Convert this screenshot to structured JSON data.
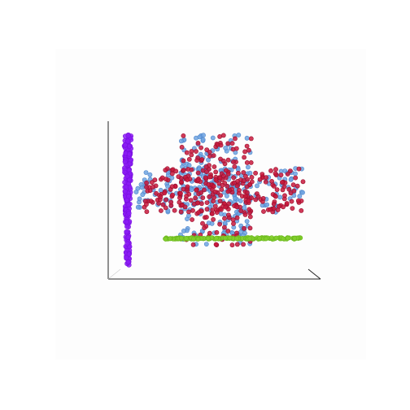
{
  "chart_data": {
    "type": "scatter",
    "projection": "3d",
    "title": "",
    "xlabel": "",
    "ylabel": "",
    "zlabel": "",
    "grid": false,
    "legend": "none",
    "series": [
      {
        "color": "#8b1cf5",
        "edge": "#7a10e0",
        "shape": "vertical-band",
        "x_range": [
          -0.05,
          0.05
        ],
        "y_range": [
          -1.0,
          1.0
        ],
        "count": 200
      },
      {
        "color": "#6fa3e0",
        "edge": "#4f86cc",
        "shape": "plus",
        "bar_x": [
          0.0,
          1.0
        ],
        "bar_y": [
          0.3,
          0.7
        ],
        "stem_x": [
          0.27,
          0.69
        ],
        "stem_y": [
          0.0,
          1.0
        ],
        "count": 330
      },
      {
        "color": "#c8183c",
        "edge": "#9a0f2c",
        "shape": "plus",
        "bar_x": [
          0.05,
          1.0
        ],
        "bar_y": [
          0.3,
          0.7
        ],
        "stem_x": [
          0.27,
          0.69
        ],
        "stem_y": [
          0.0,
          1.0
        ],
        "count": 360
      },
      {
        "color": "#82cf2e",
        "edge": "#6bb81c",
        "shape": "horizontal-band",
        "x_range": [
          0.0,
          1.0
        ],
        "y_range": [
          -0.05,
          0.05
        ],
        "count": 170
      }
    ]
  }
}
